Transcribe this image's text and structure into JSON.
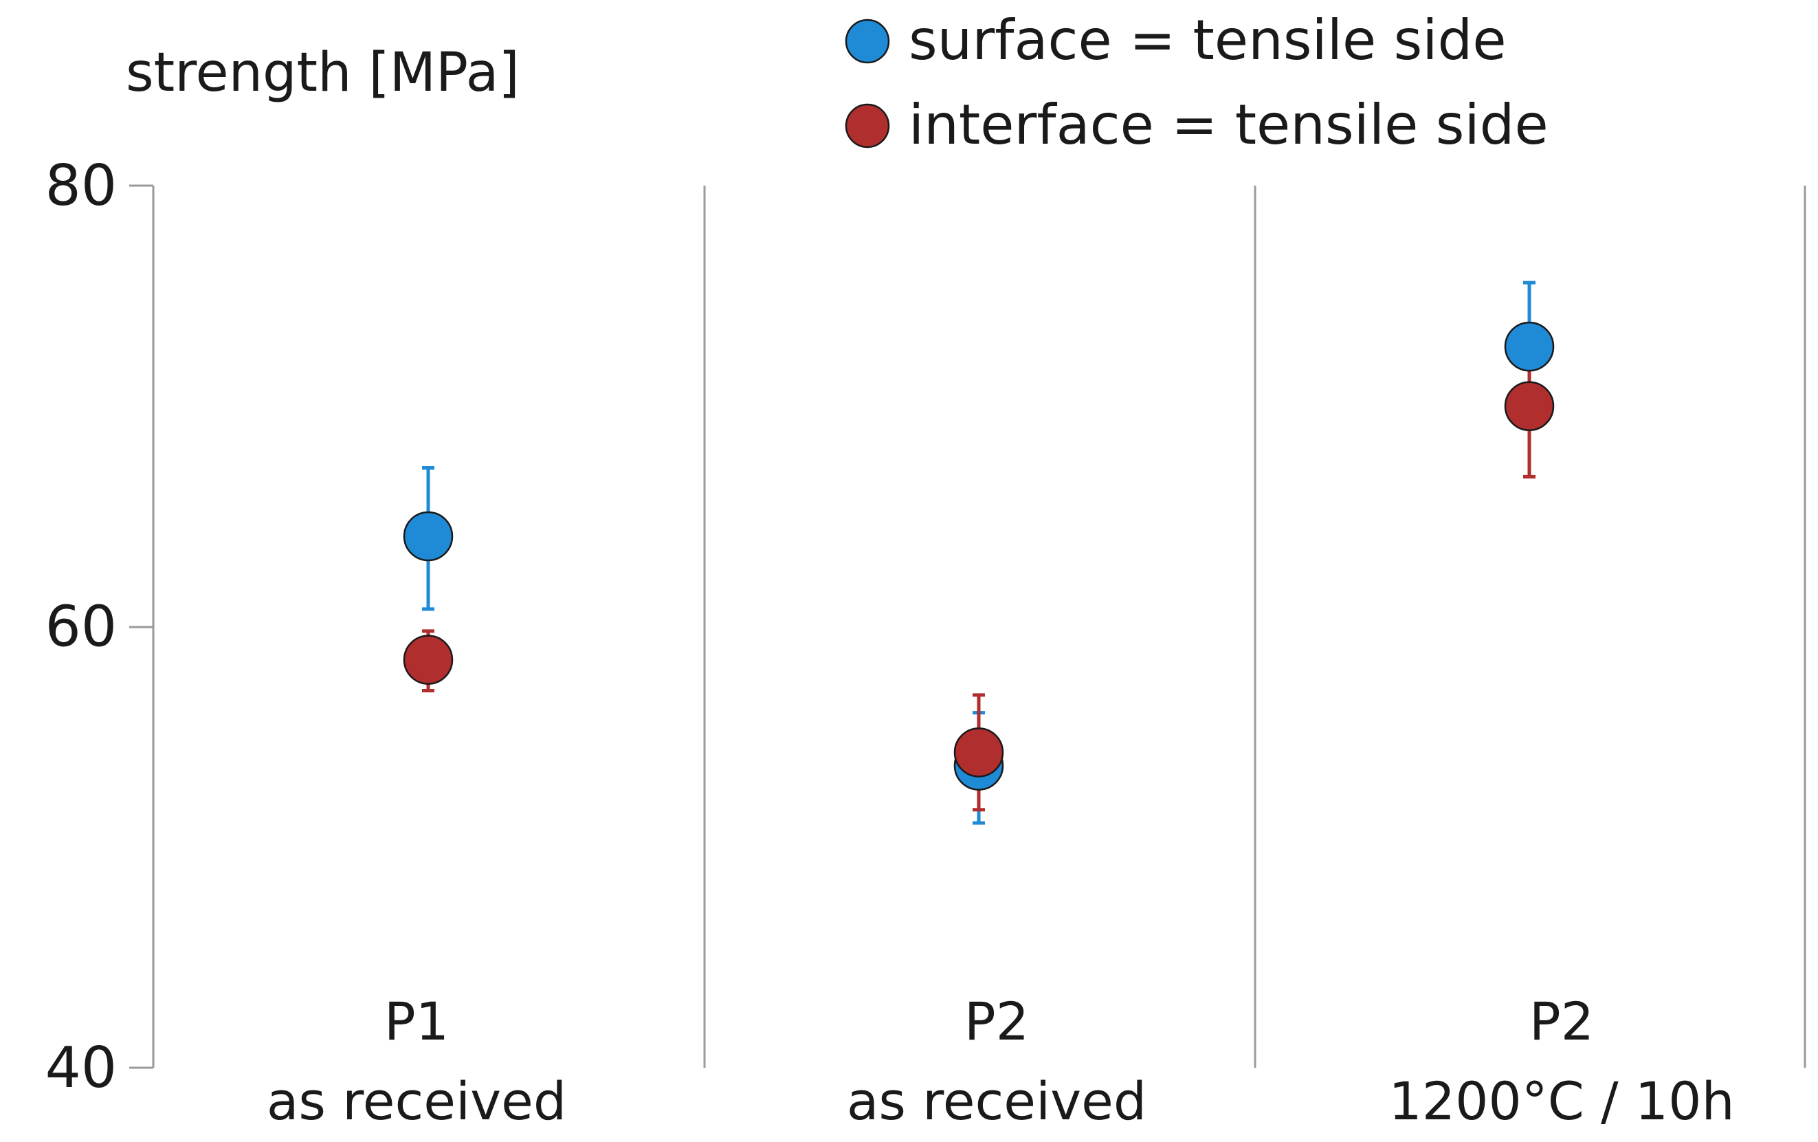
{
  "chart_data": {
    "type": "scatter",
    "title": "",
    "ylabel": "strength [MPa]",
    "xlabel": "",
    "ylim": [
      40,
      80
    ],
    "yticks": [
      40,
      60,
      80
    ],
    "categories": [
      {
        "line1": "P1",
        "line2": "as received"
      },
      {
        "line1": "P2",
        "line2": "as received"
      },
      {
        "line1": "P2",
        "line2": "1200°C / 10h"
      }
    ],
    "legend_position": "top",
    "series": [
      {
        "name": "surface = tensile side",
        "color": "#1f8ad6",
        "values": [
          64.1,
          53.7,
          72.7
        ],
        "err_low": [
          3.3,
          2.6,
          2.2
        ],
        "err_high": [
          3.1,
          2.4,
          2.9
        ]
      },
      {
        "name": "interface = tensile side",
        "color": "#b02e2e",
        "values": [
          58.5,
          54.3,
          70.0
        ],
        "err_low": [
          1.4,
          2.6,
          3.2
        ],
        "err_high": [
          1.3,
          2.6,
          1.7
        ]
      }
    ]
  }
}
